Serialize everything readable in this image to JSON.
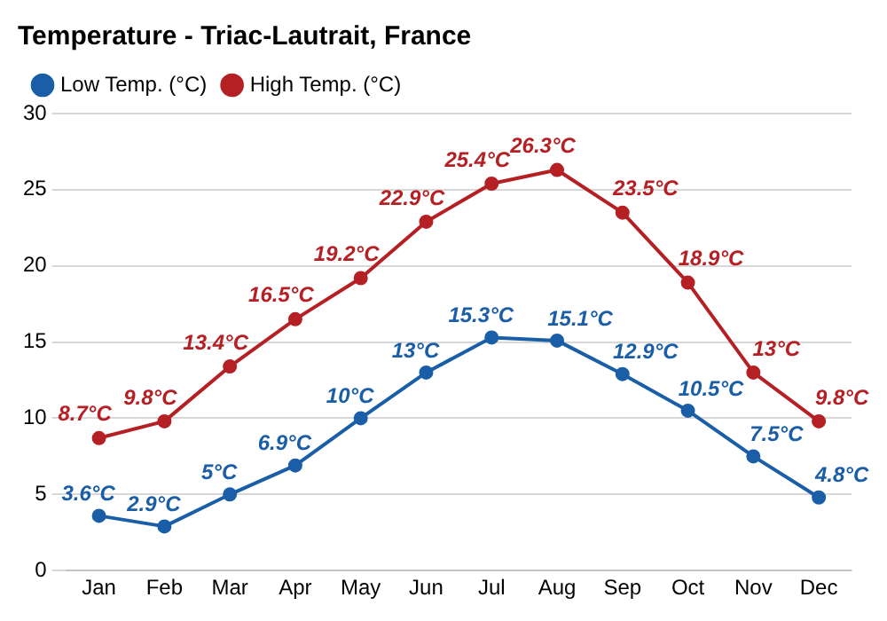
{
  "chart_data": {
    "type": "line",
    "title": "Temperature - Triac-Lautrait, France",
    "categories": [
      "Jan",
      "Feb",
      "Mar",
      "Apr",
      "May",
      "Jun",
      "Jul",
      "Aug",
      "Sep",
      "Oct",
      "Nov",
      "Dec"
    ],
    "series": [
      {
        "name": "Low Temp. (°C)",
        "color": "#1a5ea8",
        "values": [
          3.6,
          2.9,
          5,
          6.9,
          10,
          13,
          15.3,
          15.1,
          12.9,
          10.5,
          7.5,
          4.8
        ],
        "value_labels": [
          "3.6°C",
          "2.9°C",
          "5°C",
          "6.9°C",
          "10°C",
          "13°C",
          "15.3°C",
          "15.1°C",
          "12.9°C",
          "10.5°C",
          "7.5°C",
          "4.8°C"
        ]
      },
      {
        "name": "High Temp. (°C)",
        "color": "#b52025",
        "values": [
          8.7,
          9.8,
          13.4,
          16.5,
          19.2,
          22.9,
          25.4,
          26.3,
          23.5,
          18.9,
          13,
          9.8
        ],
        "value_labels": [
          "8.7°C",
          "9.8°C",
          "13.4°C",
          "16.5°C",
          "19.2°C",
          "22.9°C",
          "25.4°C",
          "26.3°C",
          "23.5°C",
          "18.9°C",
          "13°C",
          "9.8°C"
        ]
      }
    ],
    "ylim": [
      0,
      30
    ],
    "yticks": [
      0,
      5,
      10,
      15,
      20,
      25,
      30
    ],
    "grid": "y",
    "legend": "top left",
    "marker": "circle",
    "line_style": "solid"
  }
}
